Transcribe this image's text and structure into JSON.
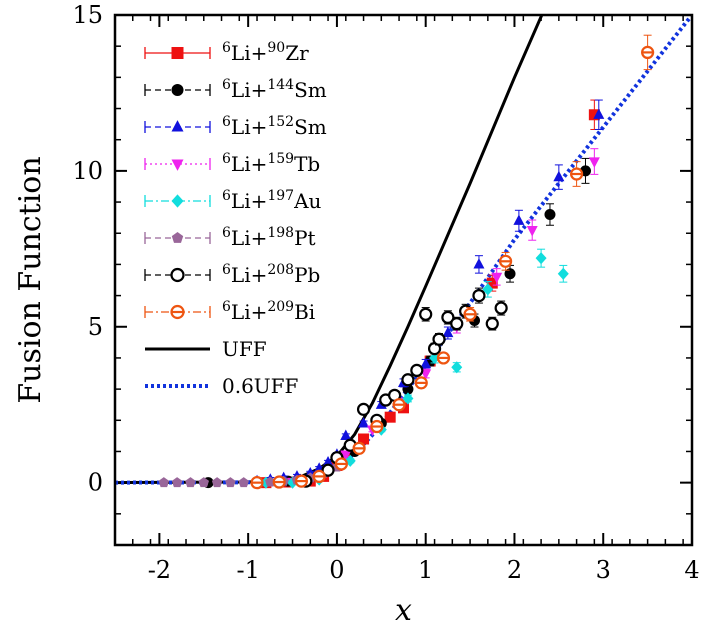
{
  "chart_data": {
    "type": "scatter",
    "xlabel": "x",
    "ylabel": "Fusion Function",
    "xlim": [
      -2.5,
      4
    ],
    "ylim": [
      -2,
      15
    ],
    "xticks": [
      -2,
      -1,
      0,
      1,
      2,
      3,
      4
    ],
    "yticks": [
      0,
      5,
      10,
      15
    ],
    "grid": false,
    "legend_position": "top-left",
    "series": [
      {
        "name": "6Li+90Zr",
        "pre": "6",
        "mid": "Li+",
        "sup": "90",
        "post": "Zr",
        "color": "#ee1111",
        "marker": "square",
        "line": "solid",
        "x": [
          -0.8,
          -0.55,
          -0.3,
          -0.15,
          0.0,
          0.1,
          0.2,
          0.3,
          0.45,
          0.6,
          0.75,
          1.05,
          1.75,
          2.9
        ],
        "y": [
          0.0,
          0.02,
          0.05,
          0.2,
          0.55,
          0.8,
          1.1,
          1.4,
          1.8,
          2.1,
          2.4,
          3.9,
          6.4,
          11.8
        ]
      },
      {
        "name": "6Li+144Sm",
        "pre": "6",
        "mid": "Li+",
        "sup": "144",
        "post": "Sm",
        "color": "#000000",
        "marker": "circle",
        "line": "dashed",
        "x": [
          -1.45,
          -0.55,
          -0.1,
          0.2,
          0.5,
          0.8,
          1.05,
          1.55,
          1.95,
          2.4,
          2.8
        ],
        "y": [
          0.0,
          0.05,
          0.4,
          1.0,
          1.9,
          3.0,
          3.9,
          5.2,
          6.7,
          8.6,
          10.0
        ]
      },
      {
        "name": "6Li+152Sm",
        "pre": "6",
        "mid": "Li+",
        "sup": "152",
        "post": "Sm",
        "color": "#1111dd",
        "marker": "triangle-up",
        "line": "dashed",
        "x": [
          -0.9,
          -0.75,
          -0.6,
          -0.45,
          -0.3,
          -0.2,
          -0.1,
          0.0,
          0.1,
          0.3,
          0.5,
          0.75,
          1.0,
          1.25,
          1.6,
          2.05,
          2.5,
          2.95
        ],
        "y": [
          0.05,
          0.1,
          0.15,
          0.2,
          0.3,
          0.45,
          0.65,
          0.9,
          1.5,
          1.9,
          2.5,
          3.2,
          3.8,
          4.8,
          7.0,
          8.4,
          9.8,
          11.8
        ]
      },
      {
        "name": "6Li+159Tb",
        "pre": "6",
        "mid": "Li+",
        "sup": "159",
        "post": "Tb",
        "color": "#ee22ee",
        "marker": "triangle-down",
        "line": "dotted",
        "x": [
          -0.5,
          -0.2,
          0.1,
          0.4,
          0.7,
          1.0,
          1.35,
          1.8,
          2.2,
          2.9
        ],
        "y": [
          0.02,
          0.2,
          0.9,
          1.7,
          2.6,
          3.5,
          5.0,
          6.6,
          8.1,
          10.3
        ]
      },
      {
        "name": "6Li+197Au",
        "pre": "6",
        "mid": "Li+",
        "sup": "197",
        "post": "Au",
        "color": "#11dddd",
        "marker": "diamond",
        "line": "dashdot",
        "x": [
          -0.8,
          -0.5,
          -0.2,
          0.15,
          0.5,
          0.8,
          1.1,
          1.35,
          1.7,
          2.3,
          2.55
        ],
        "y": [
          0.0,
          0.0,
          0.1,
          0.7,
          1.7,
          2.7,
          4.0,
          3.7,
          6.2,
          7.2,
          6.7
        ]
      },
      {
        "name": "6Li+198Pt",
        "pre": "6",
        "mid": "Li+",
        "sup": "198",
        "post": "Pt",
        "color": "#996699",
        "marker": "pentagon",
        "line": "dashed",
        "x": [
          -1.95,
          -1.8,
          -1.65,
          -1.5,
          -1.35,
          -1.2,
          -1.05,
          -0.9,
          -0.75,
          -0.6,
          -0.45,
          -0.3,
          -0.15,
          0.0
        ],
        "y": [
          0.0,
          0.0,
          0.0,
          0.0,
          0.0,
          0.0,
          0.0,
          0.0,
          0.02,
          0.04,
          0.08,
          0.15,
          0.3,
          0.5
        ]
      },
      {
        "name": "6Li+208Pb",
        "pre": "6",
        "mid": "Li+",
        "sup": "208",
        "post": "Pb",
        "color": "#000000",
        "marker": "open-circle",
        "line": "dashed",
        "x": [
          -0.35,
          -0.1,
          0.0,
          0.15,
          0.3,
          0.45,
          0.55,
          0.65,
          0.8,
          0.9,
          1.0,
          1.1,
          1.15,
          1.25,
          1.35,
          1.45,
          1.6,
          1.75,
          1.85
        ],
        "y": [
          0.05,
          0.4,
          0.8,
          1.2,
          2.35,
          2.0,
          2.65,
          2.8,
          3.3,
          3.6,
          5.4,
          4.3,
          4.6,
          5.3,
          5.1,
          5.5,
          6.0,
          5.1,
          5.6
        ]
      },
      {
        "name": "6Li+209Bi",
        "pre": "6",
        "mid": "Li+",
        "sup": "209",
        "post": "Bi",
        "color": "#ee5511",
        "marker": "open-circle-bar",
        "line": "dashdot",
        "x": [
          -0.9,
          -0.65,
          -0.4,
          -0.2,
          0.05,
          0.25,
          0.45,
          0.7,
          0.95,
          1.2,
          1.5,
          1.9,
          2.7,
          3.5
        ],
        "y": [
          0.0,
          0.02,
          0.05,
          0.2,
          0.6,
          1.1,
          1.8,
          2.5,
          3.2,
          4.0,
          5.4,
          7.1,
          9.9,
          13.8
        ]
      }
    ],
    "curves": [
      {
        "name": "UFF",
        "color": "#000000",
        "style": "solid",
        "x": [
          -2.5,
          -1.0,
          -0.6,
          -0.4,
          -0.2,
          0.0,
          0.2,
          0.4,
          0.6,
          0.8,
          1.0,
          1.5,
          2.0,
          2.4
        ],
        "y": [
          0.0,
          0.02,
          0.08,
          0.2,
          0.45,
          0.85,
          1.55,
          2.55,
          3.75,
          5.0,
          6.3,
          9.6,
          13.0,
          15.6
        ]
      },
      {
        "name": "0.6UFF",
        "color": "#1133dd",
        "style": "dotted",
        "x": [
          -2.5,
          -1.0,
          -0.6,
          -0.4,
          -0.2,
          0.0,
          0.2,
          0.4,
          0.6,
          0.8,
          1.0,
          1.5,
          2.0,
          2.5,
          3.0,
          3.5,
          4.0
        ],
        "y": [
          0.0,
          0.01,
          0.05,
          0.12,
          0.27,
          0.51,
          0.93,
          1.53,
          2.25,
          3.0,
          3.78,
          5.76,
          7.8,
          9.6,
          11.4,
          13.2,
          15.0
        ]
      }
    ]
  }
}
